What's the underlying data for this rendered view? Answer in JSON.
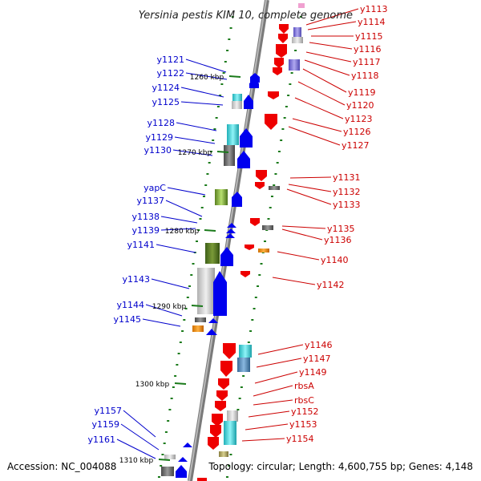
{
  "title": "Yersinia pestis KIM 10, complete genome",
  "accession_text": "Accession: NC_004088",
  "summary_text": "Topology: circular; Length: 4,600,755 bp; Genes: 4,148",
  "colors": {
    "left_label": "#0000cc",
    "right_label": "#cc0000",
    "axis": "#888888",
    "tick": "#1a7a1a"
  },
  "kbp_ticks": [
    "1260 kbp",
    "1270 kbp",
    "1280 kbp",
    "1290 kbp",
    "1300 kbp",
    "1310 kbp"
  ],
  "left_labels": [
    "y1121",
    "y1122",
    "y1124",
    "y1125",
    "y1128",
    "y1129",
    "y1130",
    "yapC",
    "y1137",
    "y1138",
    "y1139",
    "y1141",
    "y1143",
    "y1144",
    "y1145",
    "y1157",
    "y1159",
    "y1161"
  ],
  "right_labels": [
    "y1113",
    "y1114",
    "y1115",
    "y1116",
    "y1117",
    "y1118",
    "y1119",
    "y1120",
    "y1123",
    "y1126",
    "y1127",
    "y1131",
    "y1132",
    "y1133",
    "y1135",
    "y1136",
    "y1140",
    "y1142",
    "y1146",
    "y1147",
    "y1149",
    "rbsA",
    "rbsC",
    "y1152",
    "y1153",
    "y1154"
  ]
}
